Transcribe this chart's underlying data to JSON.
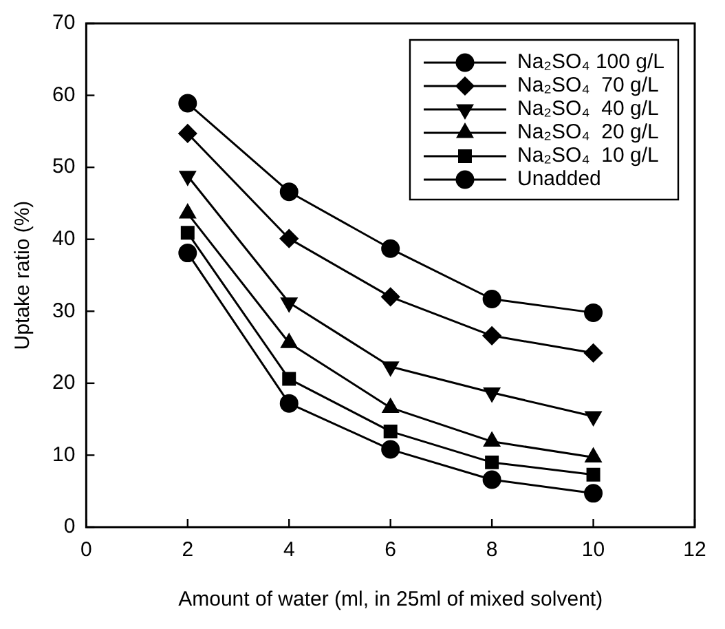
{
  "chart_data": {
    "type": "line",
    "xlabel": "Amount of water (ml, in 25ml of mixed solvent)",
    "ylabel": "Uptake ratio (%)",
    "x": [
      2,
      4,
      6,
      8,
      10
    ],
    "series": [
      {
        "name": "Na₂SO₄ 100 g/L",
        "color": "#000000",
        "marker": "circle",
        "values": [
          58.9,
          46.6,
          38.7,
          31.7,
          29.8
        ]
      },
      {
        "name": "Na₂SO₄  70 g/L",
        "color": "#000000",
        "marker": "diamond",
        "values": [
          54.7,
          40.1,
          32.0,
          26.6,
          24.2
        ]
      },
      {
        "name": "Na₂SO₄  40 g/L",
        "color": "#000000",
        "marker": "triangle-down",
        "values": [
          48.8,
          31.2,
          22.3,
          18.7,
          15.4
        ]
      },
      {
        "name": "Na₂SO₄  20 g/L",
        "color": "#000000",
        "marker": "triangle",
        "values": [
          43.6,
          25.6,
          16.6,
          11.9,
          9.7
        ]
      },
      {
        "name": "Na₂SO₄  10 g/L",
        "color": "#000000",
        "marker": "square",
        "values": [
          40.9,
          20.6,
          13.3,
          9.0,
          7.3
        ]
      },
      {
        "name": "Unadded",
        "color": "#000000",
        "marker": "circle",
        "values": [
          38.1,
          17.2,
          10.8,
          6.6,
          4.7
        ]
      }
    ],
    "xlim": [
      0,
      12
    ],
    "xticks": [
      0,
      2,
      4,
      6,
      8,
      10,
      12
    ],
    "ylim": [
      0,
      70
    ],
    "yticks": [
      0,
      10,
      20,
      30,
      40,
      50,
      60,
      70
    ],
    "grid": false,
    "legend": "top right",
    "line_style": "solid"
  }
}
